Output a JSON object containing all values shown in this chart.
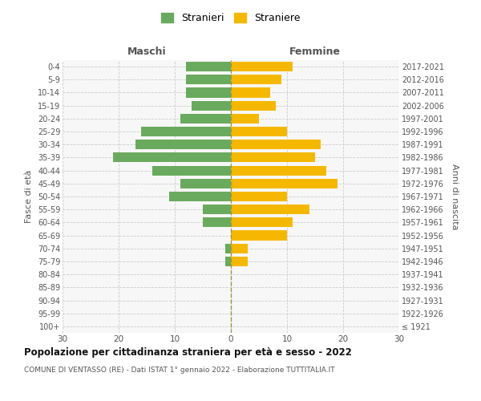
{
  "age_groups": [
    "100+",
    "95-99",
    "90-94",
    "85-89",
    "80-84",
    "75-79",
    "70-74",
    "65-69",
    "60-64",
    "55-59",
    "50-54",
    "45-49",
    "40-44",
    "35-39",
    "30-34",
    "25-29",
    "20-24",
    "15-19",
    "10-14",
    "5-9",
    "0-4"
  ],
  "birth_years": [
    "≤ 1921",
    "1922-1926",
    "1927-1931",
    "1932-1936",
    "1937-1941",
    "1942-1946",
    "1947-1951",
    "1952-1956",
    "1957-1961",
    "1962-1966",
    "1967-1971",
    "1972-1976",
    "1977-1981",
    "1982-1986",
    "1987-1991",
    "1992-1996",
    "1997-2001",
    "2002-2006",
    "2007-2011",
    "2012-2016",
    "2017-2021"
  ],
  "males": [
    0,
    0,
    0,
    0,
    0,
    1,
    1,
    0,
    5,
    5,
    11,
    9,
    14,
    21,
    17,
    16,
    9,
    7,
    8,
    8,
    8
  ],
  "females": [
    0,
    0,
    0,
    0,
    0,
    3,
    3,
    10,
    11,
    14,
    10,
    19,
    17,
    15,
    16,
    10,
    5,
    8,
    7,
    9,
    11
  ],
  "male_color": "#6aaa5e",
  "female_color": "#f5b800",
  "grid_color": "#cccccc",
  "title": "Popolazione per cittadinanza straniera per età e sesso - 2022",
  "subtitle": "COMUNE DI VENTASSO (RE) - Dati ISTAT 1° gennaio 2022 - Elaborazione TUTTITALIA.IT",
  "xlabel_left": "Maschi",
  "xlabel_right": "Femmine",
  "ylabel_left": "Fasce di età",
  "ylabel_right": "Anni di nascita",
  "legend_male": "Stranieri",
  "legend_female": "Straniere",
  "xlim": 30,
  "bg_color": "#f7f7f7",
  "bar_height": 0.75
}
